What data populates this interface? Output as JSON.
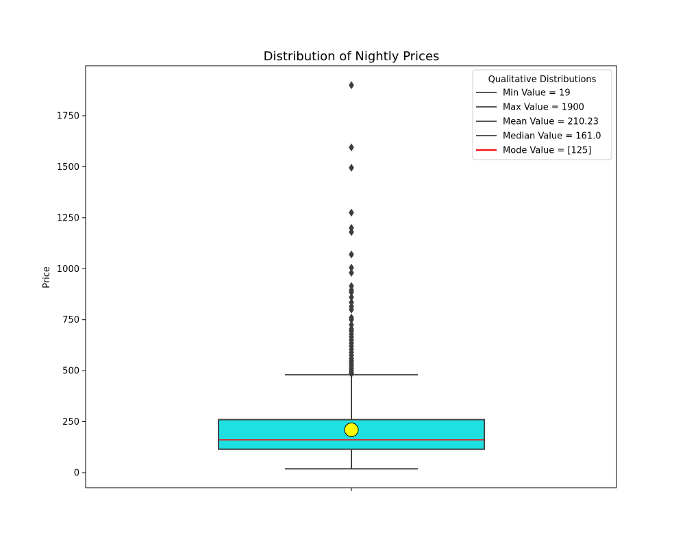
{
  "chart_data": {
    "type": "box",
    "title": "Distribution of Nightly Prices",
    "xlabel": "",
    "ylabel": "Price",
    "ylim": [
      -150,
      1990
    ],
    "yticks": [
      0,
      250,
      500,
      750,
      1000,
      1250,
      1500,
      1750
    ],
    "box": {
      "q1": 115,
      "median": 161,
      "q3": 260,
      "whisker_low": 19,
      "whisker_high": 480,
      "mean": 210.23,
      "box_color": "#1ee0e0",
      "median_color": "#d62728",
      "mean_marker_color": "#ffff00"
    },
    "outliers": [
      485,
      490,
      500,
      510,
      520,
      530,
      540,
      550,
      560,
      575,
      590,
      605,
      620,
      635,
      650,
      665,
      680,
      695,
      705,
      725,
      750,
      760,
      800,
      815,
      835,
      860,
      885,
      895,
      915,
      980,
      1005,
      1070,
      1180,
      1200,
      1275,
      1495,
      1595,
      1900
    ],
    "legend": {
      "title": "Qualitative Distributions",
      "placement": "top-right",
      "entries": [
        {
          "label": "Min Value = 19",
          "color": "#555555"
        },
        {
          "label": "Max Value = 1900",
          "color": "#555555"
        },
        {
          "label": "Mean Value = 210.23",
          "color": "#555555"
        },
        {
          "label": "Median Value = 161.0",
          "color": "#555555"
        },
        {
          "label": "Mode Value = [125]",
          "color": "#ff0000"
        }
      ]
    }
  }
}
